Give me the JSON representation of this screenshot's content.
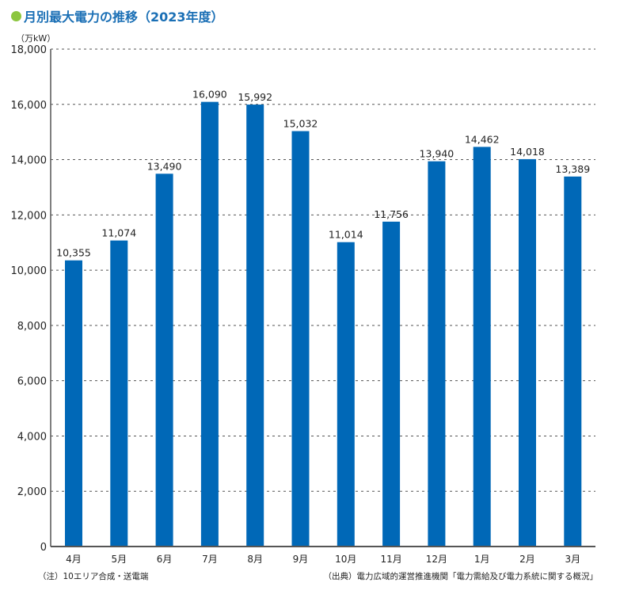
{
  "chart_data": {
    "type": "bar",
    "title": "月別最大電力の推移（2023年度）",
    "ylabel": "（万kW）",
    "xlabel": "",
    "categories": [
      "4月",
      "5月",
      "6月",
      "7月",
      "8月",
      "9月",
      "10月",
      "11月",
      "12月",
      "1月",
      "2月",
      "3月"
    ],
    "values": [
      10355,
      11074,
      13490,
      16090,
      15992,
      15032,
      11014,
      11756,
      13940,
      14462,
      14018,
      13389
    ],
    "data_labels": [
      "10,355",
      "11,074",
      "13,490",
      "16,090",
      "15,992",
      "15,032",
      "11,014",
      "11,756",
      "13,940",
      "14,462",
      "14,018",
      "13,389"
    ],
    "ylim": [
      0,
      18000
    ],
    "yticks": [
      0,
      2000,
      4000,
      6000,
      8000,
      10000,
      12000,
      14000,
      16000,
      18000
    ],
    "ytick_labels": [
      "0",
      "2,000",
      "4,000",
      "6,000",
      "8,000",
      "10,000",
      "12,000",
      "14,000",
      "16,000",
      "18,000"
    ],
    "grid": true,
    "bar_color": "#0068b7"
  },
  "notes": {
    "left": "（注）10エリア合成・送電端",
    "right": "（出典）電力広域的運営推進機関「電力需給及び電力系統に関する概況」"
  }
}
